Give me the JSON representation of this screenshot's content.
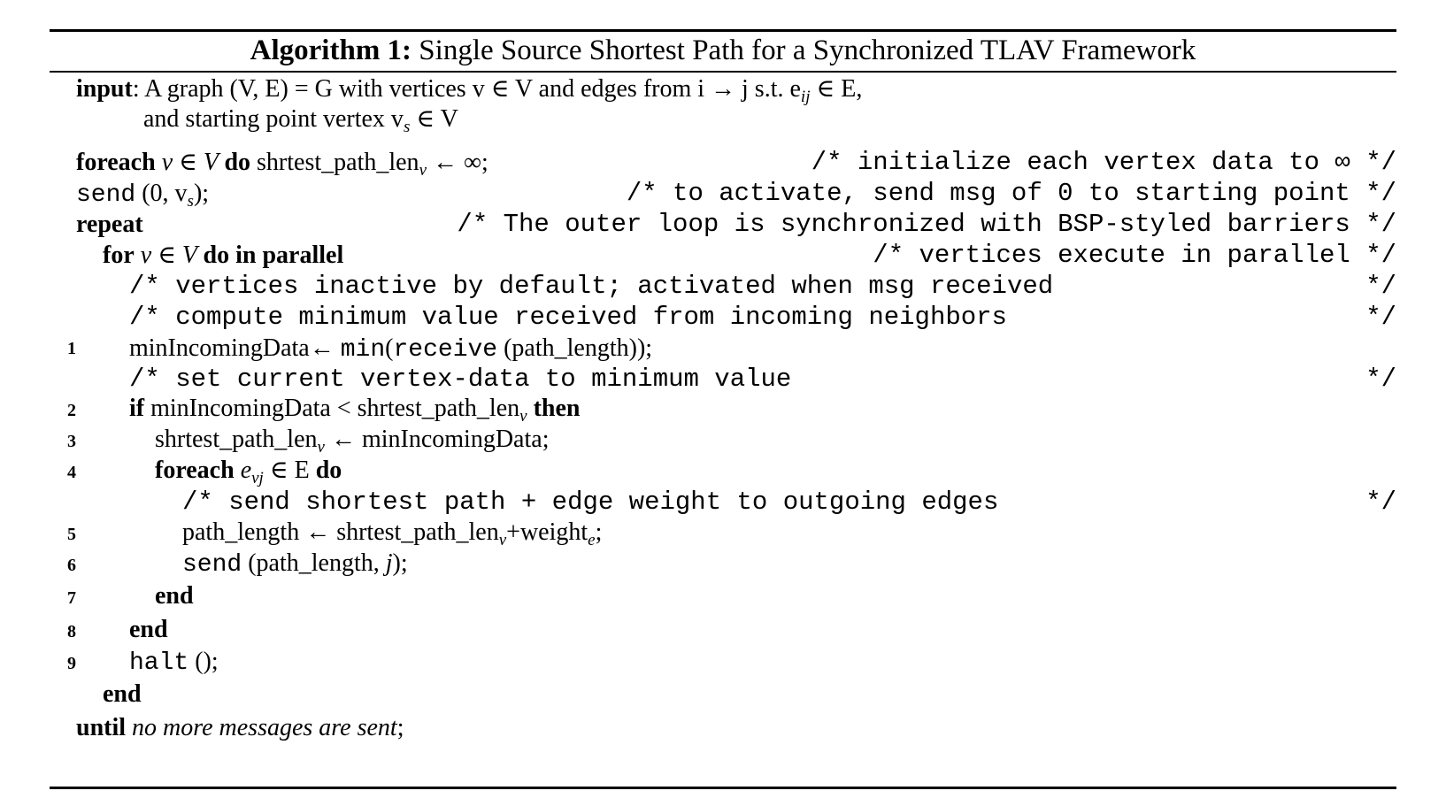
{
  "algorithm": {
    "title_prefix": "Algorithm 1:",
    "title_text": "Single Source Shortest Path for a Synchronized TLAV Framework",
    "input_keyword": "input",
    "input_line1": ": A graph (V, E) = G with vertices v ∈ V and edges from i → j s.t. e",
    "input_line1_sub": "ij",
    "input_line1_end": " ∈ E,",
    "input_line2": "and starting point vertex v",
    "input_line2_sub": "s",
    "input_line2_end": " ∈ V",
    "foreach_keyword": "foreach",
    "foreach_text": " v ∈ V ",
    "do_keyword": "do",
    "foreach_stmt": " shrtest_path_len",
    "foreach_stmt_sub": "v",
    "foreach_stmt_end": " ← ∞;",
    "comment_init": "/* initialize each vertex data to ∞ */",
    "send_fn": "send",
    "send_args": " (0, v",
    "send_args_sub": "s",
    "send_args_end": ");",
    "comment_activate": "/* to activate, send msg of 0 to starting point */",
    "repeat_keyword": "repeat",
    "comment_outer": "/* The outer loop is synchronized with BSP-styled barriers */",
    "for_keyword": "for",
    "for_text": " v ∈ V ",
    "do_in_parallel": "do in parallel",
    "comment_parallel": "/* vertices execute in parallel */",
    "comment_inactive": "/* vertices inactive by default; activated when msg received",
    "comment_compute": "/* compute minimum value received from incoming neighbors",
    "comment_end": "*/",
    "line1_a": "minIncomingData← ",
    "line1_min": "min",
    "line1_b": "(",
    "line1_receive": "receive",
    "line1_c": " (path_length));",
    "comment_set": "/* set current vertex-data to minimum value",
    "if_keyword": "if",
    "line2_text": " minIncomingData < shrtest_path_len",
    "line2_sub": "v",
    "then_keyword": " then",
    "line3_text": "shrtest_path_len",
    "line3_sub": "v",
    "line3_end": " ← minIncomingData;",
    "line4_text": " e",
    "line4_sub": "vj",
    "line4_end": " ∈ E ",
    "comment_send": "/* send shortest path + edge weight to outgoing edges",
    "line5_text": "path_length ← shrtest_path_len",
    "line5_sub": "v",
    "line5_mid": "+weight",
    "line5_sub2": "e",
    "line5_end": ";",
    "line6_args": " (path_length, ",
    "line6_j": "j",
    "line6_end": ");",
    "end_keyword": "end",
    "halt_fn": "halt",
    "halt_end": " ();",
    "until_keyword": "until",
    "until_text": " no more messages are sent",
    "until_end": ";",
    "line_numbers": [
      "1",
      "2",
      "3",
      "4",
      "5",
      "6",
      "7",
      "8",
      "9"
    ]
  }
}
